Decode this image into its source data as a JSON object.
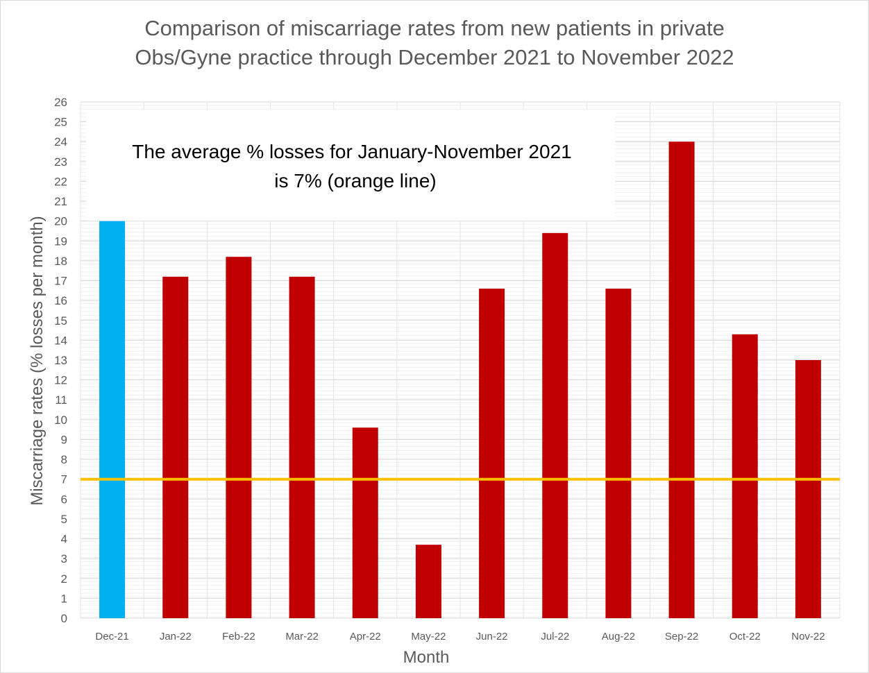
{
  "chart_data": {
    "type": "bar",
    "title_lines": [
      "Comparison of miscarriage rates from new patients in private",
      "Obs/Gyne practice through December 2021 to November 2022"
    ],
    "xlabel": "Month",
    "ylabel": "Miscarriage rates (% losses per month)",
    "ylim": [
      0,
      26
    ],
    "yticks": [
      0,
      1,
      2,
      3,
      4,
      5,
      6,
      7,
      8,
      9,
      10,
      11,
      12,
      13,
      14,
      15,
      16,
      17,
      18,
      19,
      20,
      21,
      22,
      23,
      24,
      25,
      26
    ],
    "categories": [
      "Dec-21",
      "Jan-22",
      "Feb-22",
      "Mar-22",
      "Apr-22",
      "May-22",
      "Jun-22",
      "Jul-22",
      "Aug-22",
      "Sep-22",
      "Oct-22",
      "Nov-22"
    ],
    "values": [
      20,
      17.2,
      18.2,
      17.2,
      9.6,
      3.7,
      16.6,
      19.4,
      16.6,
      24,
      14.3,
      13
    ],
    "bar_colors": [
      "#00b0f0",
      "#c00000",
      "#c00000",
      "#c00000",
      "#c00000",
      "#c00000",
      "#c00000",
      "#c00000",
      "#c00000",
      "#c00000",
      "#c00000",
      "#c00000"
    ],
    "reference_line": {
      "value": 7,
      "color": "#ffc000"
    },
    "annotation_lines": [
      "The average % losses for January-November 2021",
      "is 7% (orange line)"
    ],
    "grid": true
  }
}
